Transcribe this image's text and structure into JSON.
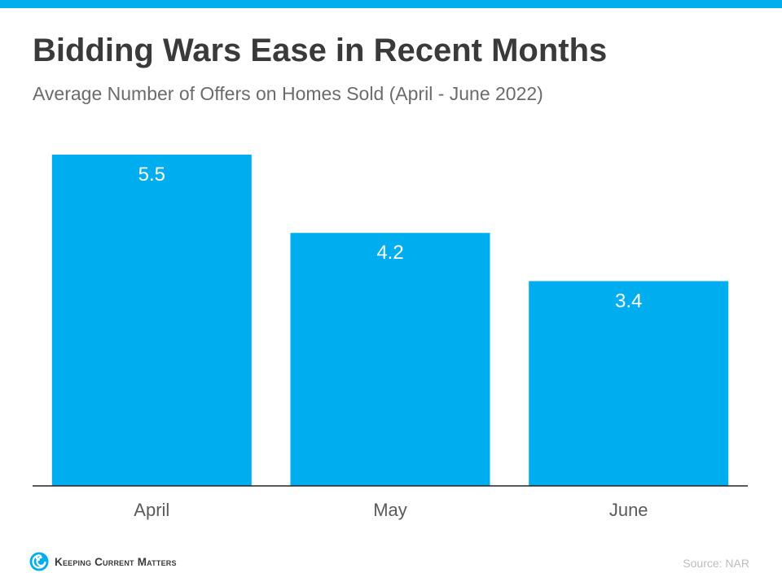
{
  "colors": {
    "accent": "#00aeef",
    "title": "#3a3a3a",
    "subtitle": "#6b6b6b",
    "axis": "#222222",
    "source": "#bdbdbd"
  },
  "chart_data": {
    "type": "bar",
    "title": "Bidding Wars Ease in Recent Months",
    "subtitle": "Average Number of Offers on Homes Sold (April - June 2022)",
    "categories": [
      "April",
      "May",
      "June"
    ],
    "values": [
      5.5,
      4.2,
      3.4
    ],
    "data_labels": [
      "5.5",
      "4.2",
      "3.4"
    ],
    "xlabel": "",
    "ylabel": "",
    "ylim": [
      0,
      5.5
    ],
    "grid": false,
    "legend": "none",
    "bar_color": "#00aeef"
  },
  "footer": {
    "brand": "Keeping Current Matters",
    "brand_icon": "kcm-swirl-logo-icon",
    "source": "Source: NAR"
  }
}
